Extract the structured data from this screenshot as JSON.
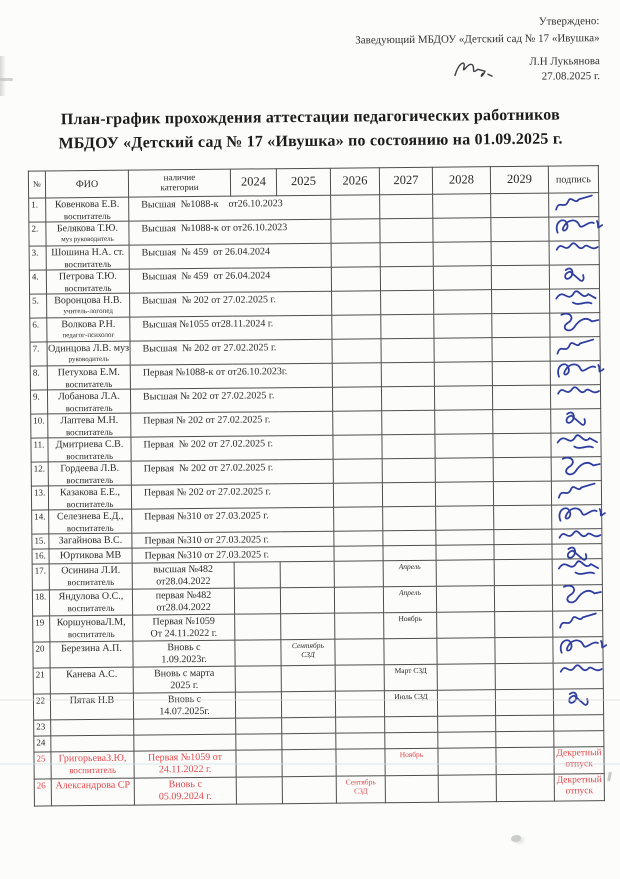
{
  "colors": {
    "red": "#e2474d",
    "ink": "#2e3da0",
    "text": "#262626"
  },
  "approval": {
    "approved_label": "Утверждено:",
    "manager_line": "Заведующий МБДОУ «Детский сад № 17  «Ивушка»",
    "signer": "Л.Н Лукьянова",
    "date": "27.08.2025  г."
  },
  "title": {
    "line1": "План-график прохождения аттестации педагогических работников",
    "line2": "МБДОУ «Детский сад № 17 «Ивушка» по состоянию на 01.09.2025 г."
  },
  "table": {
    "columns": [
      "№",
      "ФИО",
      "наличие\nкатегории",
      "2024",
      "2025",
      "2026",
      "2027",
      "2028",
      "2029",
      "подпись"
    ],
    "year_columns": [
      "2024",
      "2025",
      "2026",
      "2027",
      "2028",
      "2029"
    ],
    "rows": [
      {
        "num": "1.",
        "name": "Ковенкова Е.В.",
        "role": "воспитатель",
        "cat": "Высшая  №1088-к    от26.10.2023",
        "merged": true,
        "note": null,
        "sig": true,
        "sign_text": "",
        "red": false
      },
      {
        "num": "2.",
        "name": "Белякова Т.Ю.",
        "role": "муз руководитель",
        "cat": "Высшая  №1088-к от от26.10.2023",
        "merged": true,
        "note": null,
        "sig": true,
        "sign_text": "",
        "red": false
      },
      {
        "num": "3.",
        "name": "Шошина Н.А. ст.",
        "role": "воспитатель",
        "cat": "Высшая  № 459  от 26.04.2024",
        "merged": true,
        "note": null,
        "sig": true,
        "sign_text": "",
        "red": false
      },
      {
        "num": "4.",
        "name": "Петрова Т.Ю.",
        "role": "воспитатель",
        "cat": "Высшая  № 459  от 26.04.2024",
        "merged": true,
        "note": null,
        "sig": true,
        "sign_text": "",
        "red": false
      },
      {
        "num": "5.",
        "name": "Воронцова Н.В.",
        "role": "учитель-логопед",
        "cat": "Высшая  № 202 от 27.02.2025 г.",
        "merged": true,
        "note": null,
        "sig": true,
        "sign_text": "",
        "red": false
      },
      {
        "num": "6.",
        "name": "Волкова Р.Н.",
        "role": "педагог-психолог",
        "cat": "Высшая №1055 от28.11.2024 г.",
        "merged": true,
        "note": null,
        "sig": true,
        "sign_text": "",
        "red": false
      },
      {
        "num": "7.",
        "name": "Одинцова Л.В. муз",
        "role": "руководитель",
        "cat": "Высшая  № 202 от 27.02.2025 г.",
        "merged": true,
        "note": null,
        "sig": true,
        "sign_text": "",
        "red": false
      },
      {
        "num": "8.",
        "name": "Петухова Е.М.",
        "role": "воспитатель",
        "cat": "Первая №1088-к от от26.10.2023г.",
        "merged": true,
        "note": null,
        "sig": true,
        "sign_text": "",
        "red": false
      },
      {
        "num": "9.",
        "name": "Лобанова Л.А.",
        "role": "воспитатель",
        "cat": "Высшая № 202 от 27.02.2025 г.",
        "merged": true,
        "note": null,
        "sig": true,
        "sign_text": "",
        "red": false
      },
      {
        "num": "10.",
        "name": "Лаптева М.Н.",
        "role": "воспитатель",
        "cat": "Первая № 202 от 27.02.2025 г.",
        "merged": true,
        "note": null,
        "sig": true,
        "sign_text": "",
        "red": false
      },
      {
        "num": "11.",
        "name": "Дмитриева С.В.",
        "role": "воспитатель",
        "cat": "Первая  № 202 от 27.02.2025 г.",
        "merged": true,
        "note": null,
        "sig": true,
        "sign_text": "",
        "red": false
      },
      {
        "num": "12.",
        "name": "Гордеева Л.В.",
        "role": "воспитатель",
        "cat": "Первая  № 202 от 27.02.2025 г.",
        "merged": true,
        "note": null,
        "sig": true,
        "sign_text": "",
        "red": false
      },
      {
        "num": "13.",
        "name": "Казакова Е.Е.,",
        "role": "воспитатель",
        "cat": "Первая № 202 от 27.02.2025 г.",
        "merged": true,
        "note": null,
        "sig": true,
        "sign_text": "",
        "red": false
      },
      {
        "num": "14.",
        "name": "Селезнева Е.Д.,",
        "role": "воспитатель",
        "cat": "Первая №310 от 27.03.2025 г.",
        "merged": true,
        "note": null,
        "sig": true,
        "sign_text": "",
        "red": false
      },
      {
        "num": "15.",
        "name": "Загайнова В.С.",
        "role": "",
        "cat": "Первая №310 от 27.03.2025 г.",
        "merged": true,
        "note": null,
        "sig": true,
        "sign_text": "",
        "red": false
      },
      {
        "num": "16.",
        "name": "Юртикова МВ",
        "role": "",
        "cat": "Первая №310 от 27.03.2025 г.",
        "merged": true,
        "note": null,
        "sig": true,
        "sign_text": "",
        "red": false
      },
      {
        "num": "17.",
        "name": "Осинина Л.И.",
        "role": "воспитатель",
        "cat": "высшая №482\nот28.04.2022",
        "merged": false,
        "note": {
          "col": "2027",
          "text": "Апрель",
          "italic": true
        },
        "sig": true,
        "sign_text": "",
        "red": false
      },
      {
        "num": "18.",
        "name": "Яндулова О.С.,",
        "role": "воспитатель",
        "cat": "первая №482\nот28.04.2022",
        "merged": false,
        "note": {
          "col": "2027",
          "text": "Апрель",
          "italic": true
        },
        "sig": true,
        "sign_text": "",
        "red": false
      },
      {
        "num": "19",
        "name": "КоршуноваЛ.М,",
        "role": "воспитатель",
        "cat": "Первая №1059\nОт 24.11.2022 г.",
        "merged": false,
        "note": {
          "col": "2027",
          "text": "Ноябрь",
          "italic": false
        },
        "sig": true,
        "sign_text": "",
        "red": false
      },
      {
        "num": "20",
        "name": "Березина А.П.",
        "role": "",
        "cat": "Вновь с\n1.09.2023г.",
        "merged": false,
        "note": {
          "col": "2025",
          "text": "Сентябрь\nСЗД",
          "italic": true
        },
        "sig": true,
        "sign_text": "",
        "red": false
      },
      {
        "num": "21",
        "name": "Канева А.С.",
        "role": "",
        "cat": "Вновь с марта\n2025 г.",
        "merged": false,
        "note": {
          "col": "2027",
          "text": "Март СЗД",
          "italic": false
        },
        "sig": true,
        "sign_text": "",
        "red": false
      },
      {
        "num": "22",
        "name": "Пятак Н.В",
        "role": "",
        "cat": "Вновь с\n14.07.2025г.",
        "merged": false,
        "note": {
          "col": "2027",
          "text": "Июль СЗД",
          "italic": false
        },
        "sig": true,
        "sign_text": "",
        "red": false
      },
      {
        "num": "23",
        "name": "",
        "role": "",
        "cat": "",
        "merged": false,
        "note": null,
        "sig": false,
        "sign_text": "",
        "red": false
      },
      {
        "num": "24",
        "name": "",
        "role": "",
        "cat": "",
        "merged": false,
        "note": null,
        "sig": false,
        "sign_text": "",
        "red": false
      },
      {
        "num": "25",
        "name": "ГригорьеваЗ.Ю,",
        "role": "воспитатель",
        "cat": "Первая №1059 от\n24.11.2022 г.",
        "merged": false,
        "note": {
          "col": "2027",
          "text": "Ноябрь",
          "italic": false
        },
        "sig": false,
        "sign_text": "Декретный\nотпуск",
        "red": true
      },
      {
        "num": "26",
        "name": "Александрова СР",
        "role": "",
        "cat": "Вновь с\n05.09.2024 г.",
        "merged": false,
        "note": {
          "col": "2026",
          "text": "Сентябрь\nСЗД",
          "italic": false
        },
        "sig": false,
        "sign_text": "Декретный\nотпуск",
        "red": true
      }
    ]
  }
}
